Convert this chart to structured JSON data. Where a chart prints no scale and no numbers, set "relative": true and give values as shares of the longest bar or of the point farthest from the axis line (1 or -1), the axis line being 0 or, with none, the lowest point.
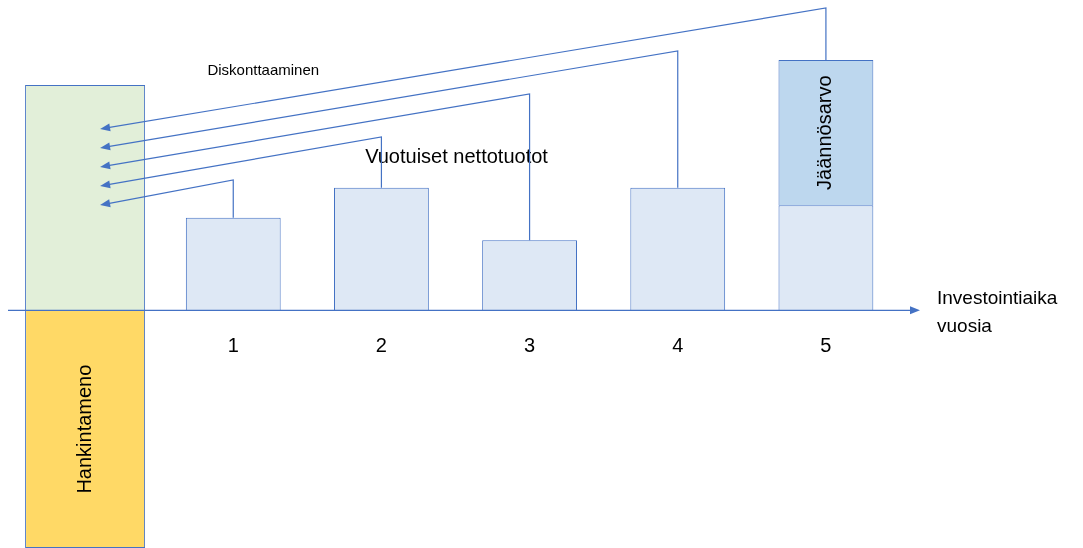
{
  "chart_data": {
    "type": "bar",
    "relative": true,
    "stacked": true,
    "xlabel": "Investointiaika vuosia",
    "annotations": [
      "Diskonttaaminen"
    ],
    "categories": [
      null,
      "1",
      "2",
      "3",
      "4",
      "5"
    ],
    "series": [
      {
        "color": "#e2efd9",
        "values": [
          0.9,
          null,
          null,
          null,
          null,
          null
        ]
      },
      {
        "name": "Hankintameno",
        "color": "#ffd966",
        "values": [
          -0.95,
          null,
          null,
          null,
          null,
          null
        ]
      },
      {
        "name": "Vuotuiset nettotuotot",
        "color": "#dee8f5",
        "values": [
          null,
          0.37,
          0.49,
          0.28,
          0.49,
          0.42
        ]
      },
      {
        "name": "Jäännösarvo",
        "color": "#bdd7ee",
        "values": [
          null,
          null,
          null,
          null,
          null,
          0.58
        ]
      }
    ]
  }
}
